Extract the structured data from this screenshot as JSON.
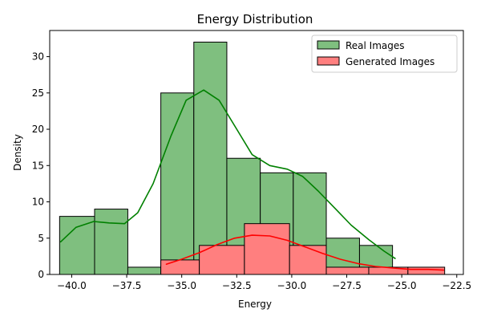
{
  "chart_data": {
    "type": "bar",
    "title": "Energy Distribution",
    "xlabel": "Energy",
    "ylabel": "Density",
    "xlim": [
      -41.0,
      -22.2
    ],
    "ylim": [
      0,
      33.6
    ],
    "xticks": [
      -40.0,
      -37.5,
      -35.0,
      -32.5,
      -30.0,
      -27.5,
      -25.0,
      -22.5
    ],
    "xtick_labels": [
      "−40.0",
      "−37.5",
      "−35.0",
      "−32.5",
      "−30.0",
      "−27.5",
      "−25.0",
      "−22.5"
    ],
    "yticks": [
      0,
      5,
      10,
      15,
      20,
      25,
      30
    ],
    "ytick_labels": [
      "0",
      "5",
      "10",
      "15",
      "20",
      "25",
      "30"
    ],
    "grid": false,
    "legend_position": "top-right",
    "series": [
      {
        "name": "Real Images",
        "color": "#008000",
        "fill": "#7fbf7f",
        "bins": [
          {
            "x0": -40.55,
            "x1": -38.96,
            "value": 8
          },
          {
            "x0": -38.96,
            "x1": -37.45,
            "value": 9
          },
          {
            "x0": -37.45,
            "x1": -35.95,
            "value": 1
          },
          {
            "x0": -35.95,
            "x1": -34.45,
            "value": 25
          },
          {
            "x0": -34.45,
            "x1": -32.95,
            "value": 32
          },
          {
            "x0": -32.95,
            "x1": -31.43,
            "value": 16
          },
          {
            "x0": -31.43,
            "x1": -29.93,
            "value": 14
          },
          {
            "x0": -29.93,
            "x1": -28.43,
            "value": 14
          },
          {
            "x0": -28.43,
            "x1": -26.92,
            "value": 5
          },
          {
            "x0": -26.92,
            "x1": -25.42,
            "value": 4
          }
        ],
        "kde": [
          [
            -40.5,
            4.5
          ],
          [
            -39.8,
            6.5
          ],
          [
            -39.0,
            7.3
          ],
          [
            -38.3,
            7.1
          ],
          [
            -37.6,
            7.0
          ],
          [
            -37.0,
            8.5
          ],
          [
            -36.3,
            12.5
          ],
          [
            -35.5,
            19.0
          ],
          [
            -34.8,
            24.0
          ],
          [
            -34.0,
            25.4
          ],
          [
            -33.3,
            24.0
          ],
          [
            -32.5,
            20.0
          ],
          [
            -31.8,
            16.5
          ],
          [
            -31.0,
            15.0
          ],
          [
            -30.2,
            14.5
          ],
          [
            -29.5,
            13.5
          ],
          [
            -28.8,
            11.5
          ],
          [
            -28.0,
            9.0
          ],
          [
            -27.3,
            6.8
          ],
          [
            -26.5,
            4.8
          ],
          [
            -25.8,
            3.2
          ],
          [
            -25.3,
            2.2
          ]
        ]
      },
      {
        "name": "Generated Images",
        "color": "#ff0000",
        "fill": "#ff7f7f",
        "bins": [
          {
            "x0": -35.95,
            "x1": -34.2,
            "value": 2
          },
          {
            "x0": -34.2,
            "x1": -32.15,
            "value": 4
          },
          {
            "x0": -32.15,
            "x1": -30.1,
            "value": 7
          },
          {
            "x0": -30.1,
            "x1": -28.43,
            "value": 4
          },
          {
            "x0": -28.43,
            "x1": -26.5,
            "value": 1
          },
          {
            "x0": -26.5,
            "x1": -24.72,
            "value": 1
          },
          {
            "x0": -24.72,
            "x1": -23.05,
            "value": 1
          }
        ],
        "kde": [
          [
            -35.7,
            1.4
          ],
          [
            -35.0,
            2.1
          ],
          [
            -34.2,
            3.0
          ],
          [
            -33.4,
            4.1
          ],
          [
            -32.6,
            5.0
          ],
          [
            -31.8,
            5.4
          ],
          [
            -31.0,
            5.3
          ],
          [
            -30.2,
            4.7
          ],
          [
            -29.4,
            3.8
          ],
          [
            -28.6,
            2.9
          ],
          [
            -27.8,
            2.1
          ],
          [
            -27.0,
            1.5
          ],
          [
            -26.2,
            1.1
          ],
          [
            -25.4,
            0.9
          ],
          [
            -24.6,
            0.7
          ],
          [
            -23.8,
            0.7
          ],
          [
            -23.1,
            0.6
          ]
        ]
      }
    ]
  }
}
